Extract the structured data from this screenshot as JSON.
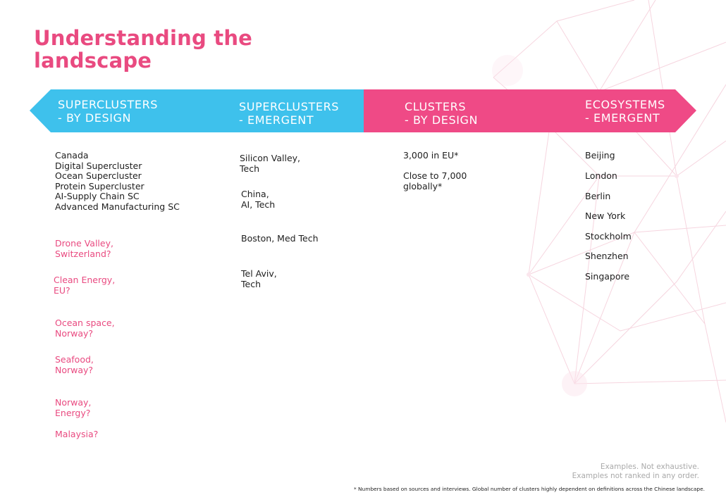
{
  "title": "Understanding the landscape",
  "colors": {
    "accent": "#e94a80",
    "blue": "#3ec1ec",
    "muted": "#a9a9a9"
  },
  "columns": [
    {
      "header_line1": "SUPERCLUSTERS",
      "header_line2": "- BY DESIGN"
    },
    {
      "header_line1": "SUPERCLUSTERS",
      "header_line2": "- EMERGENT"
    },
    {
      "header_line1": "CLUSTERS",
      "header_line2": "- BY DESIGN"
    },
    {
      "header_line1": "ECOSYSTEMS",
      "header_line2": "- EMERGENT"
    }
  ],
  "superclusters_by_design": {
    "canada_block": "Canada\nDigital Supercluster\nOcean Supercluster\nProtein Supercluster\nAI-Supply Chain SC\nAdvanced Manufacturing SC",
    "candidates": [
      "Drone Valley,\nSwitzerland?",
      "Clean Energy,\nEU?",
      "Ocean space,\nNorway?",
      "Seafood,\nNorway?",
      "Norway,\nEnergy?",
      "Malaysia?"
    ]
  },
  "superclusters_emergent": [
    "Silicon Valley,\nTech",
    "China,\nAI, Tech",
    "Boston, Med Tech",
    "Tel Aviv,\nTech"
  ],
  "clusters_by_design": [
    "3,000 in EU*",
    "Close to 7,000\nglobally*"
  ],
  "ecosystems_emergent": [
    "Beijing",
    "London",
    "Berlin",
    "New York",
    "Stockholm",
    "Shenzhen",
    "Singapore"
  ],
  "note_line1": "Examples. Not exhaustive.",
  "note_line2": "Examples not ranked in any order.",
  "footnote": "* Numbers based on sources and interviews. Global number of clusters highly dependent on definitions across the Chinese landscape."
}
